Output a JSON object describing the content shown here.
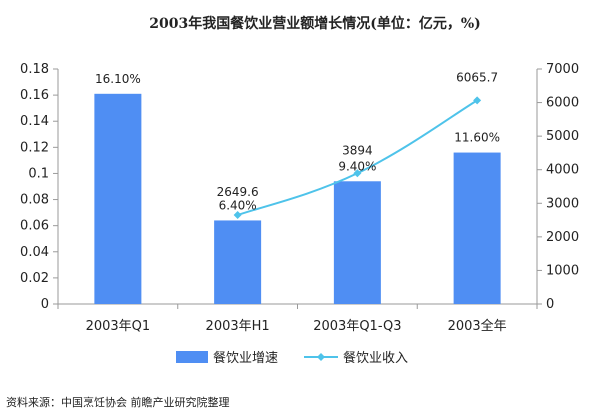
{
  "chart_data": {
    "type": "bar",
    "title": "2003年我国餐饮业营业额增长情况(单位：亿元，%)",
    "categories": [
      "2003年Q1",
      "2003年H1",
      "2003年Q1-Q3",
      "2003全年"
    ],
    "series": [
      {
        "name": "餐饮业增速",
        "type": "bar",
        "axis": "left",
        "values": [
          0.161,
          0.064,
          0.094,
          0.116
        ],
        "labels": [
          "16.10%",
          "6.40%",
          "9.40%",
          "11.60%"
        ],
        "color": "#4f8ef3"
      },
      {
        "name": "餐饮业收入",
        "type": "line",
        "axis": "right",
        "values": [
          null,
          2649.6,
          3894,
          6065.7
        ],
        "labels": [
          "",
          "2649.6",
          "3894",
          "6065.7"
        ],
        "color": "#4ec3ea"
      }
    ],
    "y_left": {
      "min": 0,
      "max": 0.18,
      "step": 0.02,
      "ticks": [
        "0",
        "0.02",
        "0.04",
        "0.06",
        "0.08",
        "0.1",
        "0.12",
        "0.14",
        "0.16",
        "0.18"
      ]
    },
    "y_right": {
      "min": 0,
      "max": 7000,
      "step": 1000,
      "ticks": [
        "0",
        "1000",
        "2000",
        "3000",
        "4000",
        "5000",
        "6000",
        "7000"
      ]
    },
    "grid": false,
    "legend_position": "bottom"
  },
  "source": "资料来源：中国烹饪协会 前瞻产业研究院整理"
}
